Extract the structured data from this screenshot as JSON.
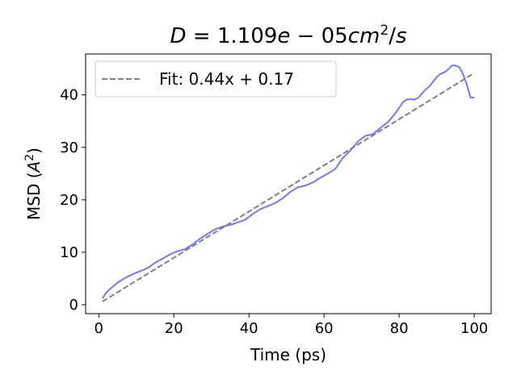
{
  "chart_data": {
    "type": "line",
    "title": "D = 1.109e − 05cm²/s",
    "title_parts": {
      "D": "D",
      "eq": " = ",
      "val": "1.109",
      "e": "e",
      "minus": " − 05",
      "cm": "cm",
      "exp": "2",
      "per": "/",
      "s": "s"
    },
    "xlabel": "Time (ps)",
    "ylabel": "MSD (A²)",
    "ylabel_parts": {
      "pre": "MSD (",
      "A": "A",
      "exp": "2",
      "post": ")"
    },
    "xlim": [
      -3.5,
      104.5
    ],
    "ylim": [
      -1.7,
      47.8
    ],
    "xticks": [
      0,
      20,
      40,
      60,
      80,
      100
    ],
    "yticks": [
      0,
      10,
      20,
      30,
      40
    ],
    "grid": false,
    "legend": {
      "position": "top-left",
      "entries": [
        "Fit: 0.44x + 0.17"
      ]
    },
    "series": [
      {
        "style": "solid",
        "color": "#7777ee",
        "x": [
          1,
          2,
          3,
          5,
          7,
          9,
          11,
          13,
          15,
          17,
          19,
          21,
          23,
          25,
          27,
          29,
          31,
          33,
          35,
          37,
          39,
          41,
          43,
          45,
          47,
          49,
          51,
          53,
          55,
          57,
          59,
          61,
          63,
          65,
          67,
          69,
          71,
          73,
          75,
          77,
          79,
          81,
          82,
          83,
          84,
          85,
          86,
          87,
          88,
          89,
          90,
          91,
          92,
          93,
          94,
          95,
          96,
          97,
          98,
          99,
          100
        ],
        "y": [
          1.2,
          2.3,
          3.0,
          4.2,
          5.1,
          5.8,
          6.4,
          7.0,
          8.0,
          8.8,
          9.6,
          10.2,
          10.6,
          11.5,
          12.6,
          13.5,
          14.4,
          14.9,
          15.2,
          15.7,
          16.2,
          17.3,
          18.2,
          18.8,
          19.4,
          20.3,
          21.5,
          22.4,
          22.7,
          23.3,
          24.2,
          25.0,
          25.9,
          28.0,
          29.4,
          31.1,
          32.2,
          32.5,
          33.7,
          34.8,
          36.5,
          38.6,
          39.1,
          39.2,
          39.1,
          39.4,
          40.2,
          41.0,
          41.6,
          42.5,
          43.4,
          44.0,
          44.3,
          44.8,
          45.6,
          45.6,
          45.3,
          44.0,
          42.0,
          39.5,
          39.5
        ]
      },
      {
        "name": "Fit: 0.44x + 0.17",
        "style": "dashed",
        "color": "#808080",
        "x": [
          1,
          100
        ],
        "y": [
          0.61,
          44.17
        ]
      }
    ]
  },
  "colors": {
    "data_line": "#7777ee",
    "fit_line": "#808080",
    "axes": "#000000",
    "background": "#ffffff"
  }
}
